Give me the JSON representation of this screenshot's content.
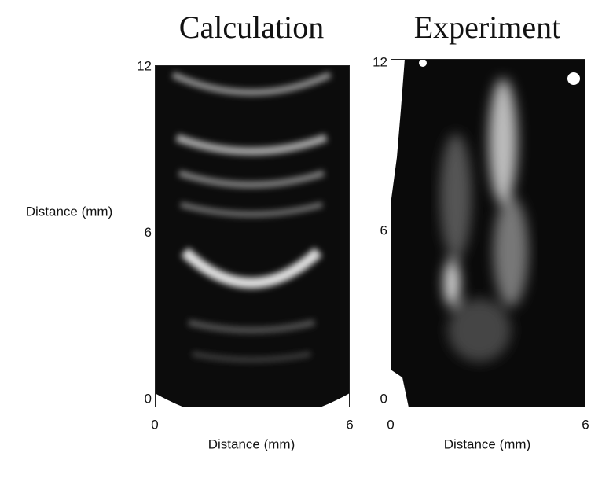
{
  "panels": [
    {
      "title": "Calculation",
      "xlabel": "Distance (mm)",
      "ylabel": "Distance (mm)",
      "xticks": [
        0,
        6
      ],
      "yticks": [
        0,
        6,
        12
      ]
    },
    {
      "title": "Experiment",
      "xlabel": "Distance (mm)",
      "xticks": [
        0,
        6
      ],
      "yticks": [
        0,
        6,
        12
      ]
    }
  ]
}
